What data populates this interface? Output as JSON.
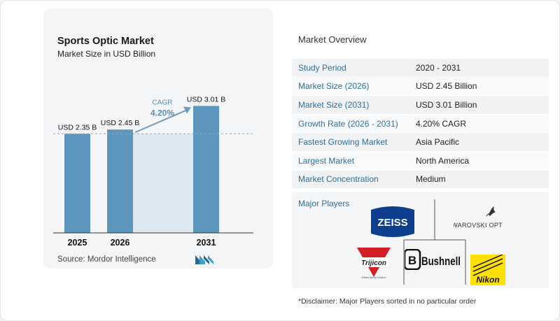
{
  "chart_data": {
    "type": "bar",
    "title": "Sports Optic Market",
    "subtitle": "Market Size in USD Billion",
    "categories": [
      "2025",
      "2026",
      "2031"
    ],
    "values": [
      2.35,
      2.45,
      3.01
    ],
    "data_labels": [
      "USD 2.35 B",
      "USD 2.45 B",
      "USD 3.01 B"
    ],
    "annotation": {
      "label": "CAGR",
      "value": "4.20%"
    },
    "ylim": [
      0,
      3.2
    ],
    "grid": false,
    "bar_color": "#5e95bd",
    "source": "Source:  Mordor Intelligence"
  },
  "overview": {
    "title": "Market Overview",
    "rows": [
      {
        "label": "Study Period",
        "value": "2020 - 2031"
      },
      {
        "label": "Market Size (2026)",
        "value": "USD 2.45 Billion"
      },
      {
        "label": "Market Size (2031)",
        "value": "USD 3.01 Billion"
      },
      {
        "label": "Growth Rate (2026 - 2031)",
        "value": "4.20% CAGR"
      },
      {
        "label": "Fastest Growing Market",
        "value": "Asia Pacific"
      },
      {
        "label": "Largest Market",
        "value": "North America"
      },
      {
        "label": "Market Concentration",
        "value": "Medium"
      }
    ]
  },
  "players": {
    "label": "Major Players",
    "logos": [
      "ZEISS",
      "SWAROVSKI OPTIK",
      "Trijicon",
      "Bushnell",
      "Nikon"
    ],
    "trijicon_tagline": "Brilliant Aiming Solutions"
  },
  "disclaimer": "*Disclaimer: Major Players sorted in no particular order",
  "colors": {
    "accent": "#2d6f9c",
    "bar": "#5e95bd",
    "band": "#dde8f1"
  }
}
